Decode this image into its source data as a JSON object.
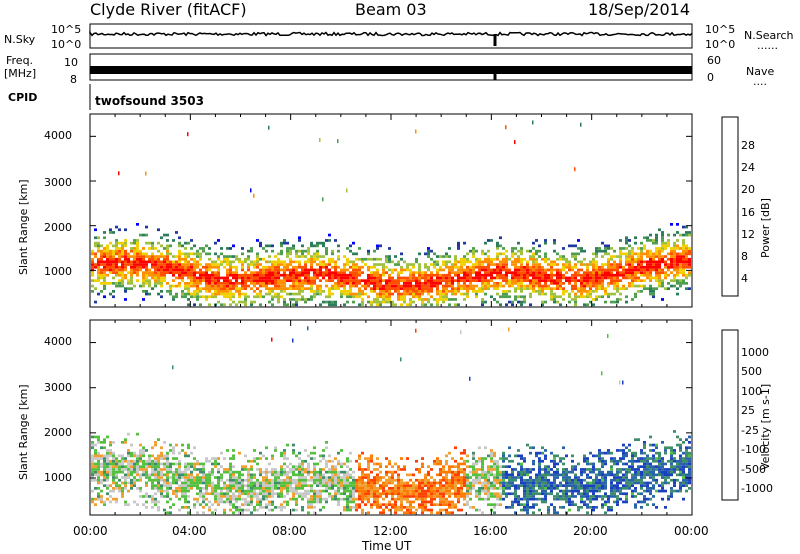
{
  "header": {
    "station": "Clyde River (fitACF)",
    "beam": "Beam 03",
    "date": "18/Sep/2014"
  },
  "panels": {
    "nsky_label": "N.Sky",
    "nsky_ticks": [
      "10^5",
      "10^0"
    ],
    "nsearch_label": "N.Search",
    "nsearch_ticks": [
      "10^5",
      "10^0"
    ],
    "freq_label_1": "Freq.",
    "freq_label_2": "[MHz]",
    "freq_ticks": [
      "10",
      "8"
    ],
    "nave_label": "Nave",
    "nave_ticks": [
      "60",
      "0"
    ],
    "cpid_label": "CPID",
    "cpid_value": "twofsound 3503",
    "dots": "......",
    "dots2": "...."
  },
  "chart_data": [
    {
      "type": "heatmap",
      "quantity": "Power",
      "ylabel": "Slant Range [km]",
      "xlabel": "",
      "ylim": [
        180,
        4500
      ],
      "xlim": [
        "00:00",
        "24:00"
      ],
      "yticks": [
        "4000",
        "3000",
        "2000",
        "1000"
      ],
      "colorbar_label": "Power [dB]",
      "colorbar_ticks": [
        "28",
        "24",
        "20",
        "16",
        "12",
        "8",
        "4"
      ],
      "colorscale": [
        "#0000ff",
        "#1e3a9e",
        "#2e7d5a",
        "#4f9e4f",
        "#a0c040",
        "#f0d000",
        "#ff9000",
        "#ff5000",
        "#ff0000"
      ]
    },
    {
      "type": "heatmap",
      "quantity": "Velocity",
      "ylabel": "Slant Range [km]",
      "xlabel": "Time UT",
      "ylim": [
        180,
        4500
      ],
      "xlim": [
        "00:00",
        "24:00"
      ],
      "yticks": [
        "4000",
        "3000",
        "2000",
        "1000"
      ],
      "xticks": [
        "00:00",
        "04:00",
        "08:00",
        "12:00",
        "16:00",
        "20:00",
        "00:00"
      ],
      "colorbar_label": "Velocity [m s-1]",
      "colorbar_ticks": [
        "1000",
        "500",
        "100",
        "25",
        "-25",
        "-100",
        "-500",
        "-1000"
      ],
      "colorscale": [
        "#1a3fbf",
        "#2a64a8",
        "#3f8e6a",
        "#55c040",
        "#c8c8c8",
        "#f0a030",
        "#ff7a00",
        "#ff4000",
        "#ff0000"
      ]
    }
  ]
}
